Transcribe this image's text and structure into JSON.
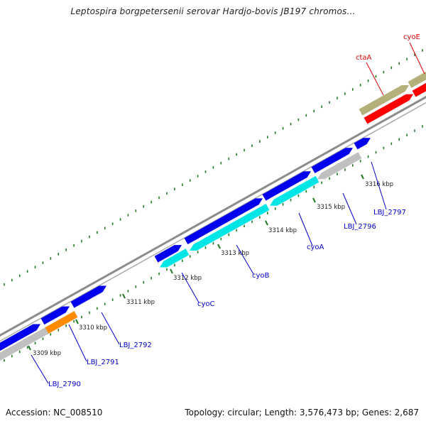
{
  "title": "Leptospira borgpetersenii serovar Hardjo-bovis JB197 chromos...",
  "footer": {
    "accession": "Accession: NC_008510",
    "summary": "Topology: circular; Length: 3,576,473 bp; Genes: 2,687"
  },
  "colors": {
    "backbone": "#8c8c8c",
    "tick_dotted": "#1f7a1f",
    "red_gene": "#ff0000",
    "olive_gene": "#b5b07a",
    "blue_gene": "#0000ee",
    "cyan_gene": "#00e5e5",
    "gray_gene": "#c0c0c0",
    "orange_gene": "#ff8c00",
    "label_blue": "#0000cc",
    "label_red": "#dd0000"
  },
  "kbp_labels": [
    "3309 kbp",
    "3310 kbp",
    "3311 kbp",
    "3312 kbp",
    "3313 kbp",
    "3314 kbp",
    "3315 kbp",
    "3316 kbp"
  ],
  "gene_labels": [
    {
      "text": "LBJ_2790",
      "color": "blue"
    },
    {
      "text": "LBJ_2791",
      "color": "blue"
    },
    {
      "text": "LBJ_2792",
      "color": "blue"
    },
    {
      "text": "cyoC",
      "color": "blue"
    },
    {
      "text": "cyoB",
      "color": "blue"
    },
    {
      "text": "cyoA",
      "color": "blue"
    },
    {
      "text": "LBJ_2796",
      "color": "blue"
    },
    {
      "text": "LBJ_2797",
      "color": "blue"
    },
    {
      "text": "ctaA",
      "color": "red"
    },
    {
      "text": "cyoE",
      "color": "red"
    }
  ]
}
